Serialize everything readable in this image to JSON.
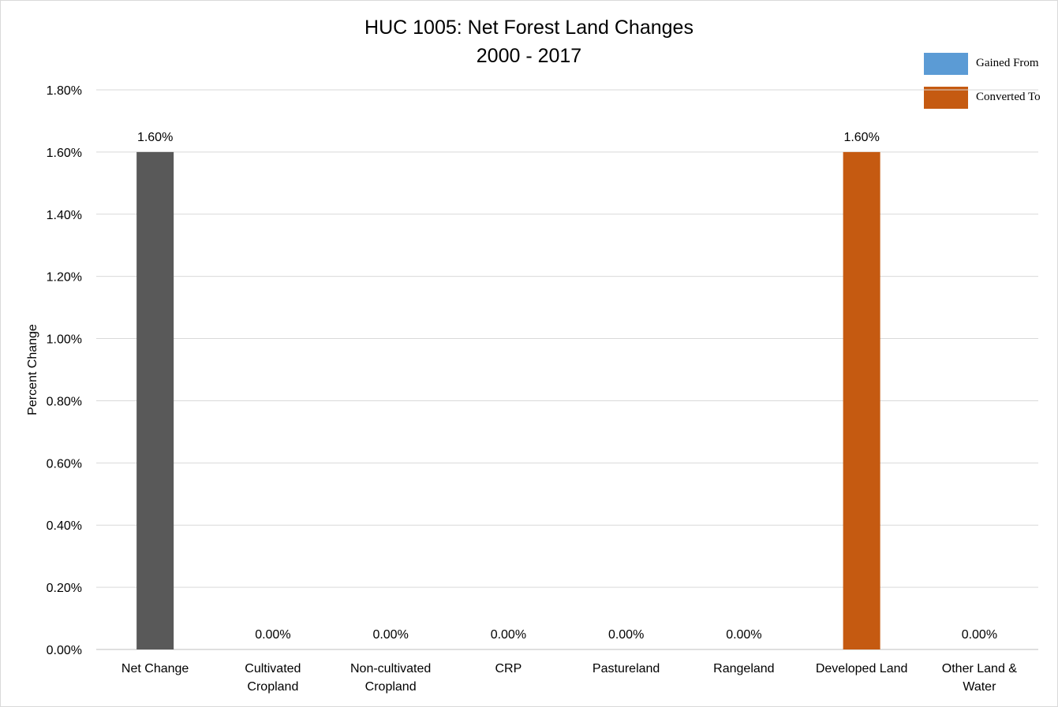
{
  "chart_data": {
    "type": "bar",
    "title": "HUC 1005: Net Forest Land Changes",
    "subtitle": "2000 - 2017",
    "xlabel": "",
    "ylabel": "Percent Change",
    "ylim": [
      0,
      1.8
    ],
    "yticks": [
      "0.00%",
      "0.20%",
      "0.40%",
      "0.60%",
      "0.80%",
      "1.00%",
      "1.20%",
      "1.40%",
      "1.60%",
      "1.80%"
    ],
    "grid": true,
    "legend_position": "top-right",
    "categories": [
      [
        "Net Change"
      ],
      [
        "Cultivated",
        "Cropland"
      ],
      [
        "Non-cultivated",
        "Cropland"
      ],
      [
        "CRP"
      ],
      [
        "Pastureland"
      ],
      [
        "Rangeland"
      ],
      [
        "Developed Land"
      ],
      [
        "Other Land &",
        "Water"
      ]
    ],
    "values": [
      1.6,
      0,
      0,
      0,
      0,
      0,
      1.6,
      0
    ],
    "data_labels": [
      "1.60%",
      "0.00%",
      "0.00%",
      "0.00%",
      "0.00%",
      "0.00%",
      "1.60%",
      "0.00%"
    ],
    "bar_colors": [
      "#595959",
      "#c55a11",
      "#c55a11",
      "#c55a11",
      "#c55a11",
      "#c55a11",
      "#c55a11",
      "#c55a11"
    ],
    "legend": [
      {
        "label": "Gained From",
        "color": "#5b9bd5"
      },
      {
        "label": "Converted To",
        "color": "#c55a11"
      }
    ]
  }
}
